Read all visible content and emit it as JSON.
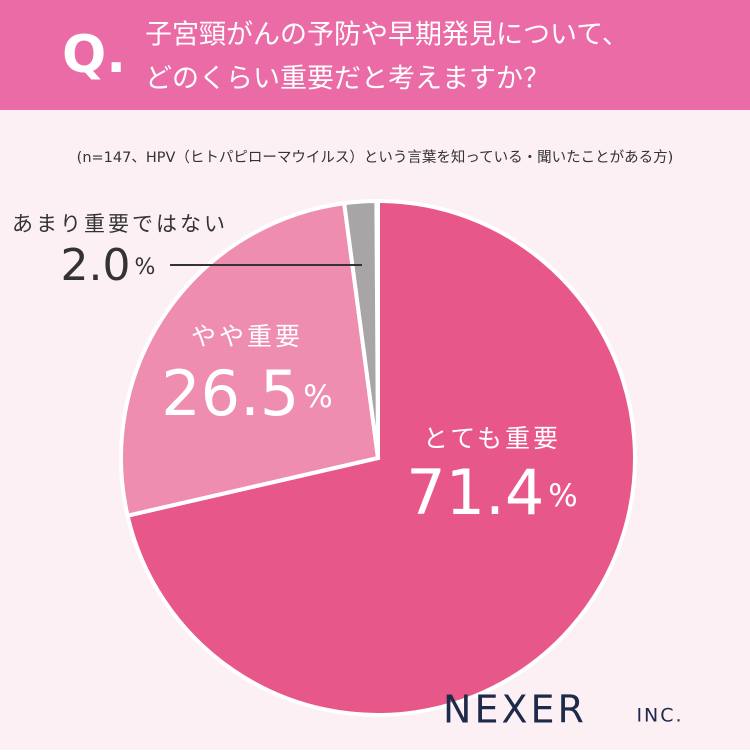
{
  "header": {
    "q": "Q.",
    "title_lines": [
      "子宮頸がんの予防や早期発見について、",
      "どのくらい重要だと考えますか？"
    ]
  },
  "chart_data": {
    "type": "pie",
    "subtitle": "(n=147、HPV（ヒトパピローマウイルス）という言葉を知っている・聞いたことがある方)",
    "categories": [
      "とても重要",
      "やや重要",
      "あまり重要ではない"
    ],
    "values": [
      71.4,
      26.5,
      2.0
    ],
    "value_labels": [
      "71.4",
      "26.5",
      "2.0"
    ],
    "unit": "%",
    "colors": [
      "#e8578a",
      "#ef8db0",
      "#a7a5a6"
    ]
  },
  "logo": {
    "name": "NEXER",
    "suffix": "INC."
  }
}
